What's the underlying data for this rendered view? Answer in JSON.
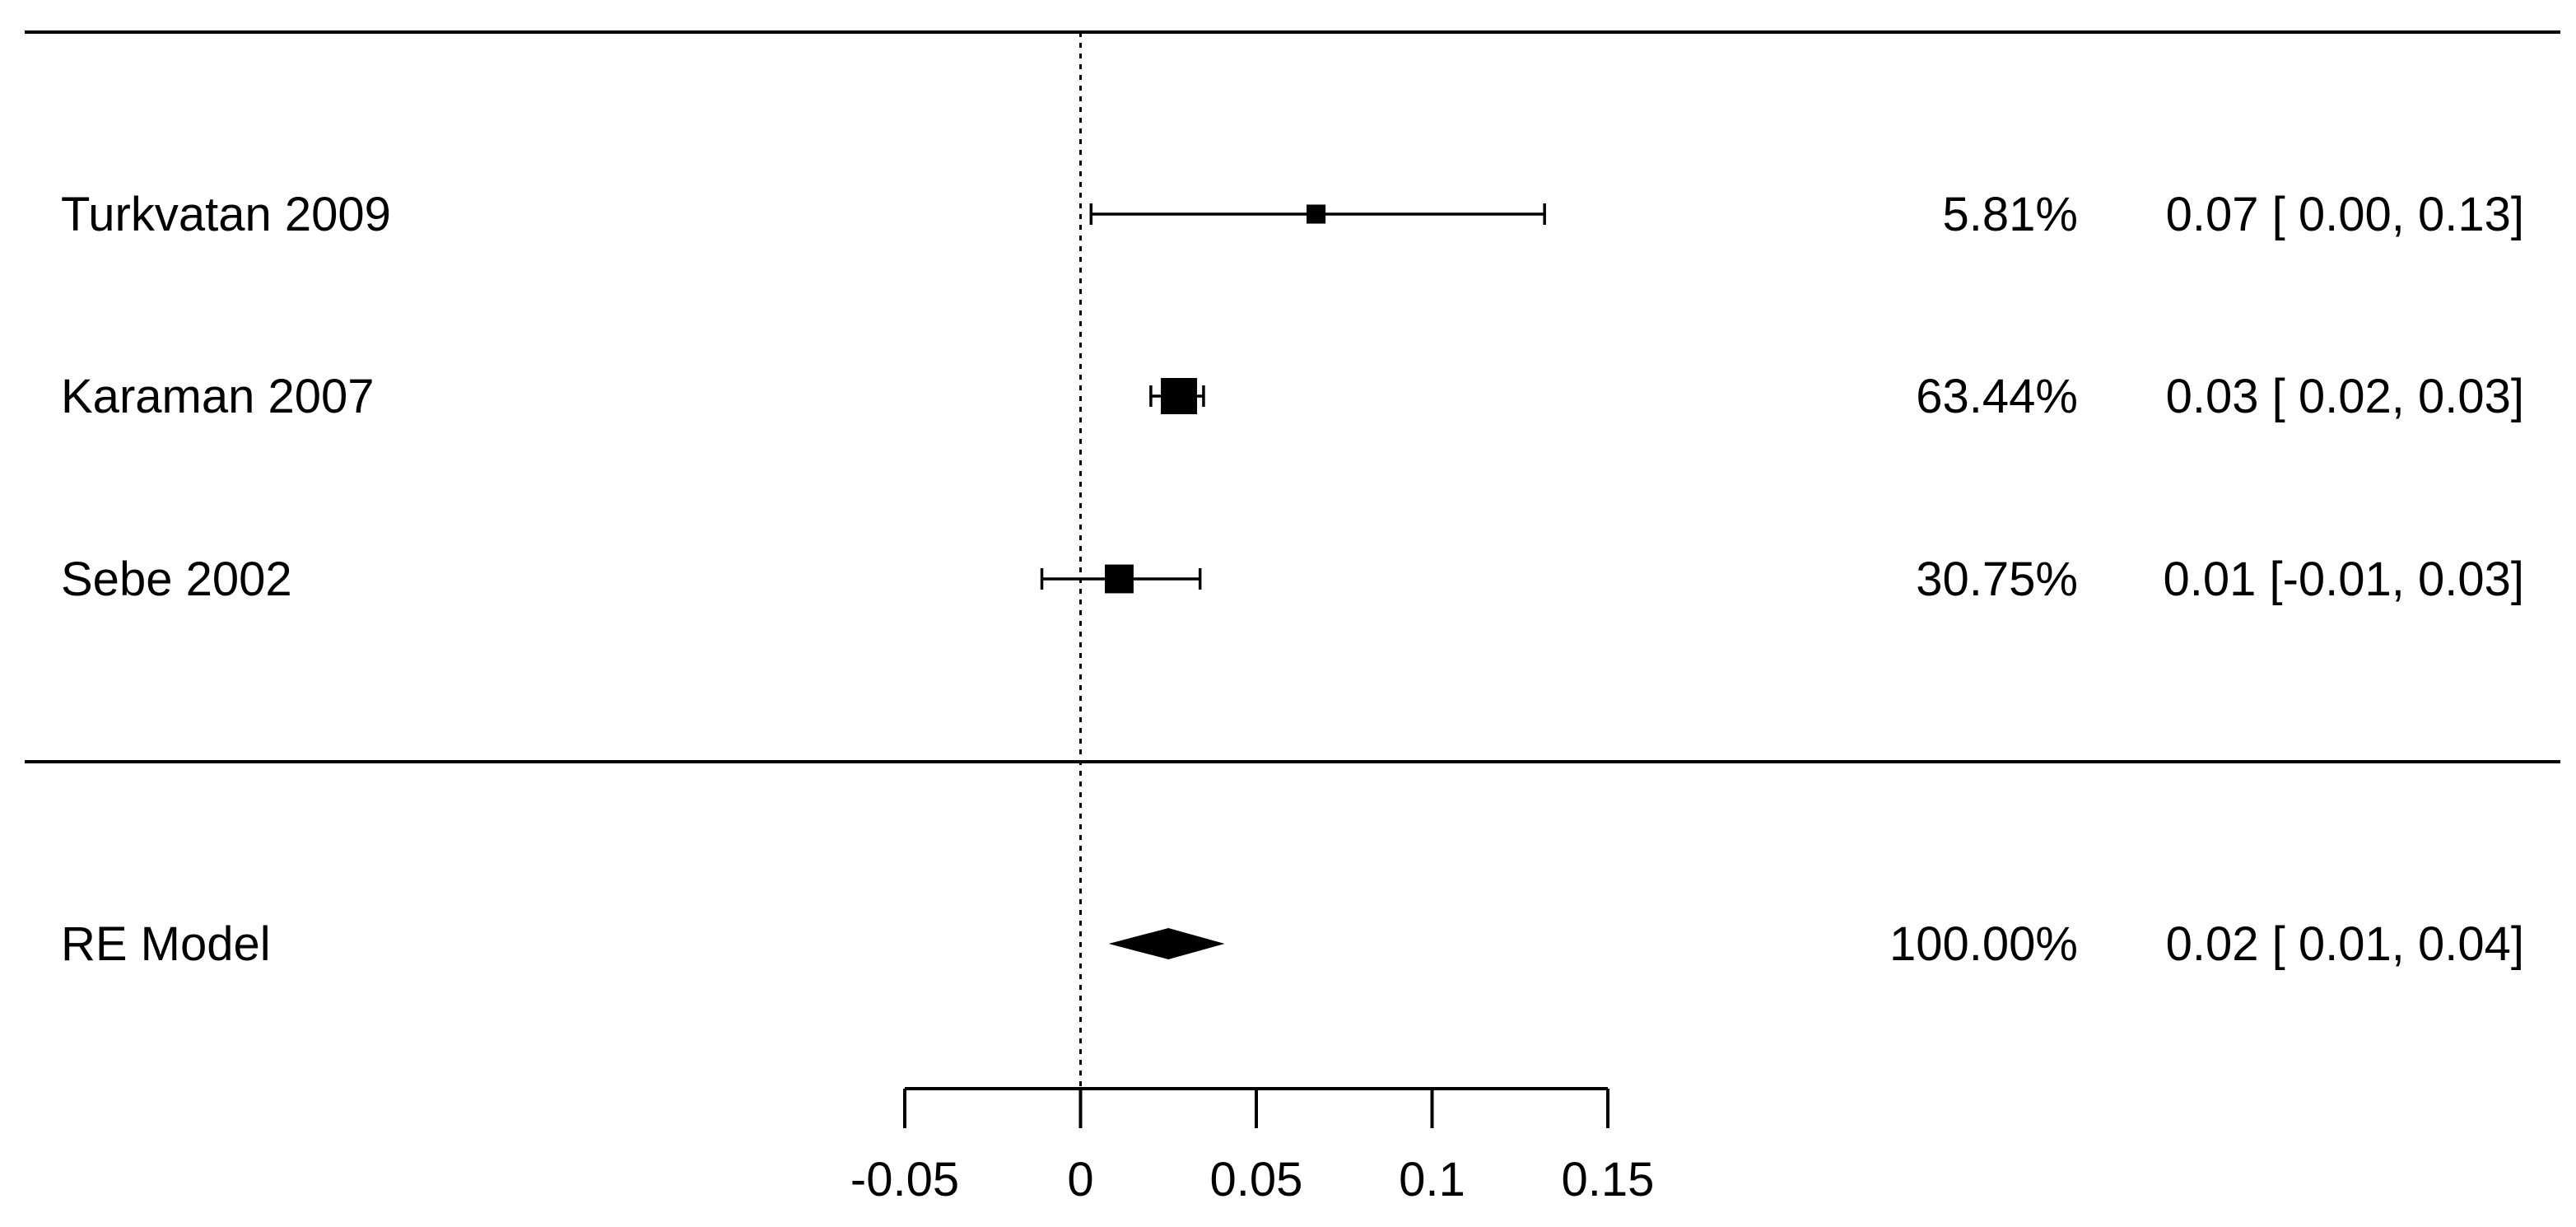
{
  "chart_data": {
    "type": "forest",
    "studies": [
      {
        "label": "Turkvatan 2009",
        "estimate": 0.067,
        "ci_lower": 0.003,
        "ci_upper": 0.132,
        "weight": 5.81,
        "weight_label": "5.81%",
        "estimate_label": "0.07 [ 0.00, 0.13]"
      },
      {
        "label": "Karaman 2007",
        "estimate": 0.028,
        "ci_lower": 0.02,
        "ci_upper": 0.035,
        "weight": 63.44,
        "weight_label": "63.44%",
        "estimate_label": "0.03 [ 0.02, 0.03]"
      },
      {
        "label": "Sebe 2002",
        "estimate": 0.011,
        "ci_lower": -0.011,
        "ci_upper": 0.034,
        "weight": 30.75,
        "weight_label": "30.75%",
        "estimate_label": "0.01 [-0.01, 0.03]"
      }
    ],
    "summary": {
      "label": "RE Model",
      "estimate": 0.025,
      "ci_lower": 0.008,
      "ci_upper": 0.041,
      "weight": 100.0,
      "weight_label": "100.00%",
      "estimate_label": "0.02 [ 0.01, 0.04]"
    },
    "x_ticks": [
      -0.05,
      0,
      0.05,
      0.1,
      0.15
    ],
    "x_tick_labels": [
      "-0.05",
      "0",
      "0.05",
      "0.1",
      "0.15"
    ],
    "xlim": [
      -0.05,
      0.15
    ],
    "reference_line": 0,
    "xlabel": "",
    "title": ""
  }
}
